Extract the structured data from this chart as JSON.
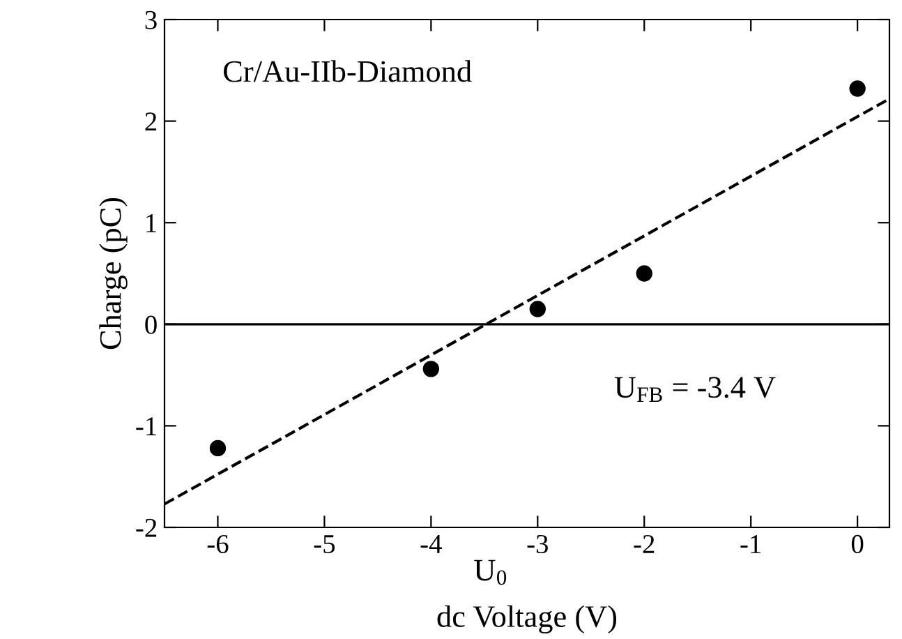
{
  "chart_data": {
    "type": "scatter",
    "xlabel": "dc Voltage (V)",
    "ylabel": "Charge (pC)",
    "xlim": [
      -6.5,
      0.3
    ],
    "xticks": [
      -6,
      -5,
      -4,
      -3,
      -2,
      -1,
      0
    ],
    "ylim": [
      -2,
      3
    ],
    "yticks": [
      -2,
      -1,
      0,
      1,
      2,
      3
    ],
    "marker": "circle",
    "grid": false,
    "legend": false,
    "series": [
      {
        "color": "#000000",
        "x": [
          -6,
          -4,
          -3,
          -2,
          0
        ],
        "values": [
          -1.22,
          -0.44,
          0.15,
          0.5,
          2.32
        ]
      },
      {
        "type": "line",
        "color": "#000000",
        "line_style": "dashed",
        "marker": "none",
        "x": [
          -6.5,
          0.3
        ],
        "values": [
          -1.77,
          2.22
        ]
      }
    ],
    "ref_lines": [
      {
        "axis": "y",
        "value": 0,
        "color": "#000000",
        "line_style": "solid"
      }
    ],
    "annotations": [
      "Cr/Au-IIb-Diamond",
      "U$_{FB}$ = -3.4 V",
      "U$_{0}$"
    ]
  }
}
